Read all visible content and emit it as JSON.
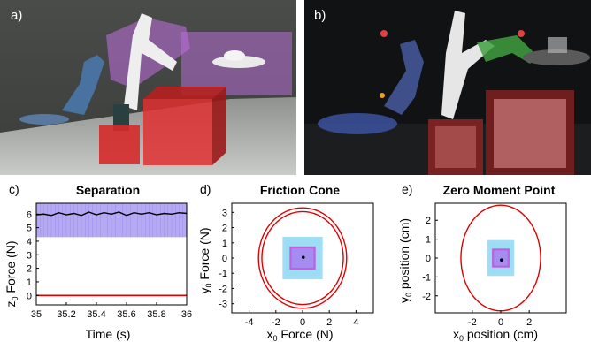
{
  "panels": {
    "a": "a)",
    "b": "b)",
    "c": "c)",
    "d": "d)",
    "e": "e)"
  },
  "chart_data": [
    {
      "type": "line",
      "title": "Separation",
      "xlabel": "Time (s)",
      "ylabel": "z",
      "ylabel_sub": "0",
      "ylabel_rest": " Force (N)",
      "xlim": [
        35,
        36
      ],
      "ylim": [
        -0.7,
        6.8
      ],
      "xticks": [
        "35",
        "35.2",
        "35.4",
        "35.6",
        "35.8",
        "36"
      ],
      "yticks": [
        "0",
        "1",
        "2",
        "3",
        "4",
        "5",
        "6"
      ],
      "band": {
        "lower": 4.3,
        "upper": 7.3,
        "color": "#9c8cf0"
      },
      "series": [
        {
          "values_x": [
            35,
            35.05,
            35.1,
            35.15,
            35.2,
            35.25,
            35.3,
            35.35,
            35.4,
            35.45,
            35.5,
            35.55,
            35.6,
            35.65,
            35.7,
            35.75,
            35.8,
            35.85,
            35.9,
            35.95,
            36
          ],
          "values_y": [
            5.95,
            6.0,
            5.9,
            6.1,
            5.95,
            6.05,
            5.9,
            6.15,
            5.95,
            6.1,
            6.0,
            6.15,
            5.9,
            6.1,
            6.0,
            6.1,
            5.95,
            6.05,
            6.0,
            6.1,
            6.05
          ],
          "color": "#000000"
        },
        {
          "values_x": [
            35,
            36
          ],
          "values_y": [
            0,
            0
          ],
          "color": "#e00000"
        }
      ]
    },
    {
      "type": "scatter",
      "title": "Friction Cone",
      "xlabel_pre": "x",
      "xlabel_sub": "0",
      "xlabel_rest": " Force (N)",
      "ylabel_pre": "y",
      "ylabel_sub": "0",
      "ylabel_rest": " Force (N)",
      "xlim": [
        -5.3,
        5.3
      ],
      "ylim": [
        -3.6,
        3.6
      ],
      "xticks": [
        "-4",
        "-2",
        "0",
        "2",
        "4"
      ],
      "yticks": [
        "-3",
        "-2",
        "-1",
        "0",
        "1",
        "2",
        "3"
      ],
      "circles": [
        {
          "radius": 3.3,
          "color": "#e00000"
        },
        {
          "radius": 3.05,
          "color": "#e00000"
        }
      ],
      "outer_box": {
        "half_w": 1.5,
        "half_h": 1.4,
        "color": "#79d0f0"
      },
      "inner_box": {
        "half_w": 0.9,
        "half_h": 0.7,
        "color": "#c060e0"
      },
      "points": [
        [
          0.05,
          0.05
        ]
      ]
    },
    {
      "type": "scatter",
      "title": "Zero Moment Point",
      "xlabel_pre": "x",
      "xlabel_sub": "0",
      "xlabel_rest": " position (cm)",
      "ylabel_pre": "y",
      "ylabel_sub": "0",
      "ylabel_rest": " position (cm)",
      "xlim": [
        -4.6,
        4.6
      ],
      "ylim": [
        -2.9,
        2.9
      ],
      "xticks": [
        "-2",
        "0",
        "2"
      ],
      "yticks": [
        "-2",
        "-1",
        "0",
        "1",
        "2"
      ],
      "circles": [
        {
          "radius": 2.8,
          "color": "#e00000"
        }
      ],
      "outer_box": {
        "half_w": 0.95,
        "half_h": 0.95,
        "color": "#79d0f0"
      },
      "inner_box": {
        "half_w": 0.55,
        "half_h": 0.45,
        "color": "#c060e0"
      },
      "points": [
        [
          0.05,
          -0.1
        ]
      ]
    }
  ]
}
